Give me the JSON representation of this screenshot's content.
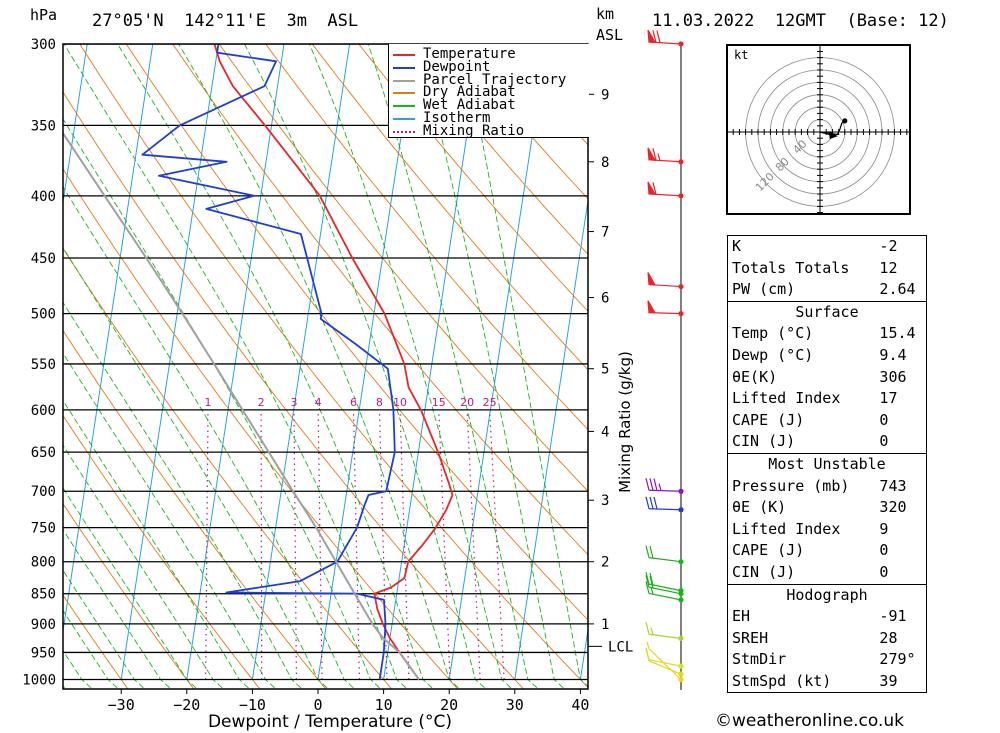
{
  "header": {
    "hpa_label": "hPa",
    "location": "27°05'N  142°11'E  3m  ASL",
    "km_label": "km",
    "asl_label": "ASL",
    "datetime": "11.03.2022  12GMT  (Base: 12)"
  },
  "legend": [
    {
      "label": "Temperature",
      "color": "#e8262a",
      "style": "solid"
    },
    {
      "label": "Dewpoint",
      "color": "#1f3fd4",
      "style": "solid"
    },
    {
      "label": "Parcel Trajectory",
      "color": "#a0a0a0",
      "style": "solid"
    },
    {
      "label": "Dry Adiabat",
      "color": "#e07b1a",
      "style": "solid"
    },
    {
      "label": "Wet Adiabat",
      "color": "#1db31d",
      "style": "solid"
    },
    {
      "label": "Isotherm",
      "color": "#2aa3e0",
      "style": "solid"
    },
    {
      "label": "Mixing Ratio",
      "color": "#c0198a",
      "style": "dotted"
    }
  ],
  "chart_data": {
    "type": "line",
    "xlabel": "Dewpoint / Temperature (°C)",
    "ylabel": "hPa",
    "right_axis_label": "Mixing Ratio (g/kg)",
    "x_ticks": [
      -30,
      -20,
      -10,
      0,
      10,
      20,
      30,
      40
    ],
    "pressure_levels": [
      300,
      350,
      400,
      450,
      500,
      550,
      600,
      650,
      700,
      750,
      800,
      850,
      900,
      950,
      1000
    ],
    "km_ticks": [
      {
        "label": "1",
        "p": 900
      },
      {
        "label": "2",
        "p": 800
      },
      {
        "label": "3",
        "p": 712
      },
      {
        "label": "4",
        "p": 625
      },
      {
        "label": "5",
        "p": 555
      },
      {
        "label": "6",
        "p": 485
      },
      {
        "label": "7",
        "p": 428
      },
      {
        "label": "8",
        "p": 375
      },
      {
        "label": "9",
        "p": 330
      }
    ],
    "lcl": {
      "label": "LCL",
      "p": 925
    },
    "mixing_ratio_labels": [
      "1",
      "2",
      "3",
      "4",
      "6",
      "8",
      "10",
      "15",
      "20",
      "25"
    ],
    "series": [
      {
        "name": "Temperature",
        "color": "#e8262a",
        "points": [
          [
            1000,
            15.4
          ],
          [
            975,
            13.6
          ],
          [
            950,
            11.8
          ],
          [
            925,
            10.0
          ],
          [
            900,
            8.6
          ],
          [
            875,
            7.4
          ],
          [
            850,
            6.6
          ],
          [
            840,
            9.0
          ],
          [
            825,
            10.8
          ],
          [
            800,
            11.0
          ],
          [
            775,
            12.8
          ],
          [
            750,
            14.4
          ],
          [
            725,
            15.6
          ],
          [
            705,
            16.2
          ],
          [
            690,
            15.4
          ],
          [
            650,
            13.0
          ],
          [
            600,
            9.4
          ],
          [
            575,
            7.0
          ],
          [
            550,
            5.8
          ],
          [
            500,
            1.6
          ],
          [
            450,
            -4.6
          ],
          [
            400,
            -11.0
          ],
          [
            375,
            -15.8
          ],
          [
            350,
            -21.0
          ],
          [
            325,
            -26.8
          ],
          [
            310,
            -29.4
          ],
          [
            300,
            -30.6
          ]
        ]
      },
      {
        "name": "Dewpoint",
        "color": "#1f3fd4",
        "points": [
          [
            1000,
            9.4
          ],
          [
            950,
            9.4
          ],
          [
            900,
            9.0
          ],
          [
            860,
            8.2
          ],
          [
            850,
            4.0
          ],
          [
            848,
            -16.0
          ],
          [
            830,
            -5.0
          ],
          [
            800,
            0.2
          ],
          [
            750,
            2.4
          ],
          [
            720,
            3.0
          ],
          [
            705,
            3.4
          ],
          [
            700,
            6.0
          ],
          [
            650,
            6.4
          ],
          [
            600,
            5.2
          ],
          [
            555,
            3.4
          ],
          [
            530,
            -2.0
          ],
          [
            505,
            -8.0
          ],
          [
            500,
            -8.0
          ],
          [
            430,
            -13.0
          ],
          [
            410,
            -28.0
          ],
          [
            400,
            -21.0
          ],
          [
            385,
            -36.0
          ],
          [
            375,
            -26.0
          ],
          [
            370,
            -39.0
          ],
          [
            350,
            -34.0
          ],
          [
            325,
            -22.0
          ],
          [
            310,
            -20.8
          ],
          [
            305,
            -30.0
          ],
          [
            300,
            -30.0
          ]
        ]
      },
      {
        "name": "Parcel Trajectory",
        "color": "#a0a0a0",
        "points": [
          [
            1000,
            15.4
          ],
          [
            950,
            11.8
          ],
          [
            925,
            9.0
          ],
          [
            900,
            7.0
          ],
          [
            850,
            3.6
          ],
          [
            800,
            0.0
          ],
          [
            750,
            -3.8
          ],
          [
            700,
            -8.2
          ],
          [
            650,
            -12.8
          ],
          [
            600,
            -17.8
          ],
          [
            550,
            -23.2
          ],
          [
            500,
            -29.2
          ],
          [
            450,
            -36.0
          ],
          [
            400,
            -43.8
          ],
          [
            350,
            -52.6
          ],
          [
            325,
            -57.4
          ],
          [
            310,
            -60.4
          ]
        ]
      }
    ]
  },
  "wind_profile": [
    {
      "p": 300,
      "color": "#e8262a",
      "dir": 280,
      "speed": 70
    },
    {
      "p": 375,
      "color": "#e8262a",
      "dir": 280,
      "speed": 65
    },
    {
      "p": 400,
      "color": "#e8262a",
      "dir": 280,
      "speed": 60
    },
    {
      "p": 475,
      "color": "#e8262a",
      "dir": 280,
      "speed": 50
    },
    {
      "p": 500,
      "color": "#e8262a",
      "dir": 275,
      "speed": 50
    },
    {
      "p": 700,
      "color": "#8a14c8",
      "dir": 275,
      "speed": 35
    },
    {
      "p": 725,
      "color": "#1f3fd4",
      "dir": 275,
      "speed": 30
    },
    {
      "p": 800,
      "color": "#1db31d",
      "dir": 290,
      "speed": 20
    },
    {
      "p": 845,
      "color": "#1db31d",
      "dir": 300,
      "speed": 20
    },
    {
      "p": 850,
      "color": "#1db31d",
      "dir": 300,
      "speed": 20
    },
    {
      "p": 860,
      "color": "#1db31d",
      "dir": 300,
      "speed": 15
    },
    {
      "p": 925,
      "color": "#a6d626",
      "dir": 290,
      "speed": 15
    },
    {
      "p": 975,
      "color": "#d8e020",
      "dir": 300,
      "speed": 10
    },
    {
      "p": 990,
      "color": "#e0d820",
      "dir": 320,
      "speed": 10
    },
    {
      "p": 1000,
      "color": "#f0d020",
      "dir": 340,
      "speed": 5
    }
  ],
  "hodograph": {
    "unit_label": "kt",
    "ring_labels": [
      "40",
      "80",
      "120"
    ],
    "path": [
      [
        0,
        0
      ],
      [
        10,
        -2
      ],
      [
        18,
        -2
      ],
      [
        22,
        -3
      ],
      [
        28,
        -4
      ],
      [
        32,
        4
      ],
      [
        35,
        14
      ],
      [
        40,
        18
      ]
    ],
    "storm_motion": [
      19,
      -5
    ]
  },
  "indices": {
    "top": [
      {
        "label": "K",
        "value": "-2"
      },
      {
        "label": "Totals Totals",
        "value": "12"
      },
      {
        "label": "PW (cm)",
        "value": "2.64"
      }
    ],
    "surface_title": "Surface",
    "surface": [
      {
        "label": "Temp (°C)",
        "value": "15.4"
      },
      {
        "label": "Dewp (°C)",
        "value": "9.4"
      },
      {
        "label": "θE(K)",
        "value": "306"
      },
      {
        "label": "Lifted Index",
        "value": "17"
      },
      {
        "label": "CAPE (J)",
        "value": "0"
      },
      {
        "label": "CIN (J)",
        "value": "0"
      }
    ],
    "mu_title": "Most Unstable",
    "mu": [
      {
        "label": "Pressure (mb)",
        "value": "743"
      },
      {
        "label": "θE (K)",
        "value": "320"
      },
      {
        "label": "Lifted Index",
        "value": "9"
      },
      {
        "label": "CAPE (J)",
        "value": "0"
      },
      {
        "label": "CIN (J)",
        "value": "0"
      }
    ],
    "hodo_title": "Hodograph",
    "hodo": [
      {
        "label": "EH",
        "value": "-91"
      },
      {
        "label": "SREH",
        "value": "28"
      },
      {
        "label": "StmDir",
        "value": "279°"
      },
      {
        "label": "StmSpd (kt)",
        "value": "39"
      }
    ]
  },
  "copyright": "©weatheronline.co.uk"
}
